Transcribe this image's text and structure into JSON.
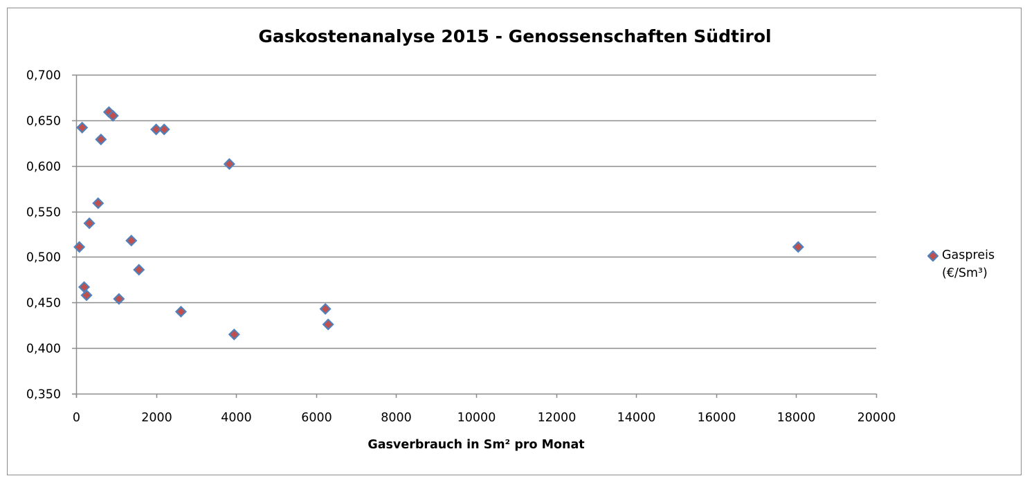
{
  "chart_data": {
    "type": "scatter",
    "title": "Gaskostenanalyse 2015 - Genossenschaften Südtirol",
    "xlabel": "Gasverbrauch in Sm² pro Monat",
    "ylabel": "",
    "xlim": [
      0,
      20000
    ],
    "ylim": [
      0.35,
      0.7
    ],
    "x_ticks": [
      0,
      2000,
      4000,
      6000,
      8000,
      10000,
      12000,
      14000,
      16000,
      18000,
      20000
    ],
    "x_tick_labels": [
      "0",
      "2000",
      "4000",
      "6000",
      "8000",
      "10000",
      "12000",
      "14000",
      "16000",
      "18000",
      "20000"
    ],
    "y_ticks": [
      0.35,
      0.4,
      0.45,
      0.5,
      0.55,
      0.6,
      0.65,
      0.7
    ],
    "y_tick_labels": [
      "0,350",
      "0,400",
      "0,450",
      "0,500",
      "0,550",
      "0,600",
      "0,650",
      "0,700"
    ],
    "grid": "horizontal",
    "legend_position": "right",
    "series": [
      {
        "name": "Gaspreis (€/Sm³)",
        "legend_lines": [
          "Gaspreis",
          "(€/Sm³)"
        ],
        "marker": "diamond",
        "marker_fill": "#c0504d",
        "marker_stroke": "#4f81bd",
        "x": [
          150,
          820,
          920,
          620,
          2000,
          2200,
          3830,
          550,
          330,
          80,
          1380,
          18050,
          1570,
          200,
          260,
          1070,
          2620,
          6230,
          3950,
          6300
        ],
        "y": [
          0.642,
          0.659,
          0.655,
          0.629,
          0.64,
          0.64,
          0.602,
          0.559,
          0.537,
          0.511,
          0.518,
          0.511,
          0.486,
          0.467,
          0.458,
          0.454,
          0.44,
          0.443,
          0.415,
          0.426
        ]
      }
    ]
  }
}
